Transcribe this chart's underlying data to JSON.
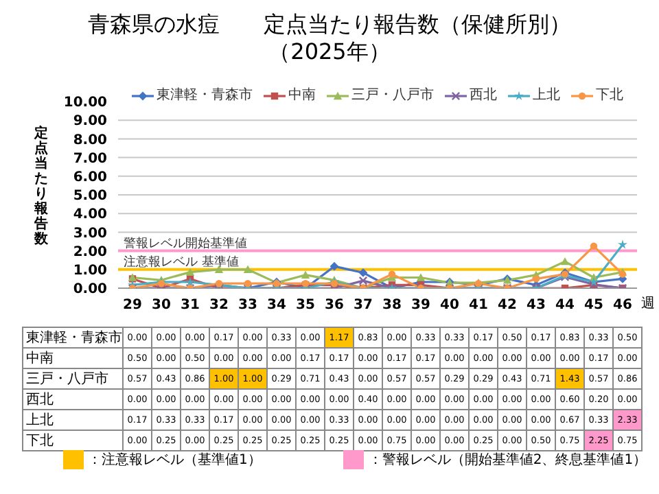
{
  "chart_data": {
    "type": "line",
    "title": "青森県の水痘　　定点当たり報告数（保健所別）",
    "subtitle": "（2025年）",
    "xlabel": "週",
    "ylabel": "定点当たり報告数",
    "categories": [
      "29",
      "30",
      "31",
      "32",
      "33",
      "34",
      "35",
      "36",
      "37",
      "38",
      "39",
      "40",
      "41",
      "42",
      "43",
      "44",
      "45",
      "46"
    ],
    "series": [
      {
        "name": "東津軽・青森市",
        "color": "#4472c4",
        "marker": "diamond",
        "values": [
          0.0,
          0.0,
          0.0,
          0.17,
          0.0,
          0.33,
          0.0,
          1.17,
          0.83,
          0.0,
          0.33,
          0.33,
          0.17,
          0.5,
          0.17,
          0.83,
          0.33,
          0.5
        ],
        "value_labels": [
          "0.00",
          "0.00",
          "0.00",
          "0.17",
          "0.00",
          "0.33",
          "0.00",
          "1.17",
          "0.83",
          "0.00",
          "0.33",
          "0.33",
          "0.17",
          "0.50",
          "0.17",
          "0.83",
          "0.33",
          "0.50"
        ]
      },
      {
        "name": "中南",
        "color": "#c0504d",
        "marker": "square",
        "values": [
          0.5,
          0.0,
          0.5,
          0.0,
          0.0,
          0.0,
          0.17,
          0.17,
          0.0,
          0.17,
          0.17,
          0.0,
          0.0,
          0.0,
          0.0,
          0.0,
          0.17,
          0.0
        ],
        "value_labels": [
          "0.50",
          "0.00",
          "0.50",
          "0.00",
          "0.00",
          "0.00",
          "0.17",
          "0.17",
          "0.00",
          "0.17",
          "0.17",
          "0.00",
          "0.00",
          "0.00",
          "0.00",
          "0.00",
          "0.17",
          "0.00"
        ]
      },
      {
        "name": "三戸・八戸市",
        "color": "#9bbb59",
        "marker": "triangle",
        "values": [
          0.57,
          0.43,
          0.86,
          1.0,
          1.0,
          0.29,
          0.71,
          0.43,
          0.0,
          0.57,
          0.57,
          0.29,
          0.29,
          0.43,
          0.71,
          1.43,
          0.57,
          0.86
        ],
        "value_labels": [
          "0.57",
          "0.43",
          "0.86",
          "1.00",
          "1.00",
          "0.29",
          "0.71",
          "0.43",
          "0.00",
          "0.57",
          "0.57",
          "0.29",
          "0.29",
          "0.43",
          "0.71",
          "1.43",
          "0.57",
          "0.86"
        ]
      },
      {
        "name": "西北",
        "color": "#8064a2",
        "marker": "cross",
        "values": [
          0.0,
          0.0,
          0.0,
          0.0,
          0.0,
          0.0,
          0.0,
          0.0,
          0.4,
          0.0,
          0.0,
          0.0,
          0.0,
          0.0,
          0.0,
          0.6,
          0.2,
          0.0
        ],
        "value_labels": [
          "0.00",
          "0.00",
          "0.00",
          "0.00",
          "0.00",
          "0.00",
          "0.00",
          "0.00",
          "0.40",
          "0.00",
          "0.00",
          "0.00",
          "0.00",
          "0.00",
          "0.00",
          "0.60",
          "0.20",
          "0.00"
        ]
      },
      {
        "name": "上北",
        "color": "#4bacc6",
        "marker": "star",
        "values": [
          0.17,
          0.33,
          0.33,
          0.17,
          0.0,
          0.0,
          0.0,
          0.33,
          0.0,
          0.0,
          0.0,
          0.0,
          0.0,
          0.0,
          0.0,
          0.67,
          0.33,
          2.33
        ],
        "value_labels": [
          "0.17",
          "0.33",
          "0.33",
          "0.17",
          "0.00",
          "0.00",
          "0.00",
          "0.33",
          "0.00",
          "0.00",
          "0.00",
          "0.00",
          "0.00",
          "0.00",
          "0.00",
          "0.67",
          "0.33",
          "2.33"
        ]
      },
      {
        "name": "下北",
        "color": "#f79646",
        "marker": "circle",
        "values": [
          0.0,
          0.25,
          0.0,
          0.25,
          0.25,
          0.25,
          0.25,
          0.25,
          0.0,
          0.75,
          0.0,
          0.0,
          0.25,
          0.0,
          0.5,
          0.75,
          2.25,
          0.75
        ],
        "value_labels": [
          "0.00",
          "0.25",
          "0.00",
          "0.25",
          "0.25",
          "0.25",
          "0.25",
          "0.25",
          "0.00",
          "0.75",
          "0.00",
          "0.00",
          "0.25",
          "0.00",
          "0.50",
          "0.75",
          "2.25",
          "0.75"
        ]
      }
    ],
    "ylim": [
      0,
      10
    ],
    "yticks": [
      {
        "value": 0,
        "label": "0.00"
      },
      {
        "value": 1,
        "label": "1.00"
      },
      {
        "value": 2,
        "label": "2.00"
      },
      {
        "value": 3,
        "label": "3.00"
      },
      {
        "value": 4,
        "label": "4.00"
      },
      {
        "value": 5,
        "label": "5.00"
      },
      {
        "value": 6,
        "label": "6.00"
      },
      {
        "value": 7,
        "label": "7.00"
      },
      {
        "value": 8,
        "label": "8.00"
      },
      {
        "value": 9,
        "label": "9.00"
      },
      {
        "value": 10,
        "label": "10.00"
      }
    ],
    "ref_lines": [
      {
        "axis": "y",
        "value": 1,
        "label": "注意報レベル 基準値",
        "color": "#ffc000"
      },
      {
        "axis": "y",
        "value": 2,
        "label": "警報レベル開始基準値",
        "color": "#ff99cc"
      }
    ],
    "annotations": [
      "：注意報レベル（基準値1）",
      "：警報レベル（開始基準値2、終息基準値1）"
    ],
    "grid": "y",
    "legend": "top",
    "line_style": "solid"
  }
}
